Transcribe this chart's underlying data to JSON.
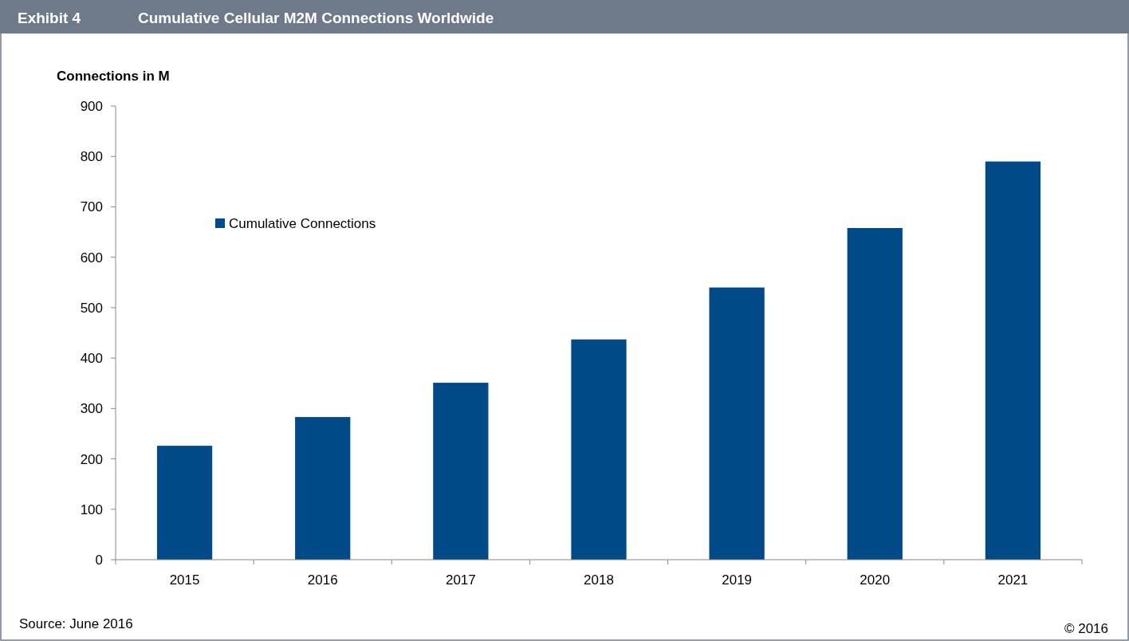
{
  "chart_data": {
    "type": "bar",
    "title": "Cumulative Cellular M2M Connections Worldwide",
    "ylabel": "Connections in M",
    "annotations": [
      "Exhibit 4",
      "Source: June 2016",
      "© 2016"
    ],
    "categories": [
      "2015",
      "2016",
      "2017",
      "2018",
      "2019",
      "2020",
      "2021"
    ],
    "series": [
      {
        "name": "Cumulative Connections",
        "color": "#004b87",
        "values": [
          226,
          283,
          351,
          437,
          540,
          658,
          790
        ]
      }
    ],
    "ylim": [
      0,
      900
    ],
    "yticks": [
      0,
      100,
      200,
      300,
      400,
      500,
      600,
      700,
      800,
      900
    ],
    "grid": false,
    "legend": "top left"
  }
}
